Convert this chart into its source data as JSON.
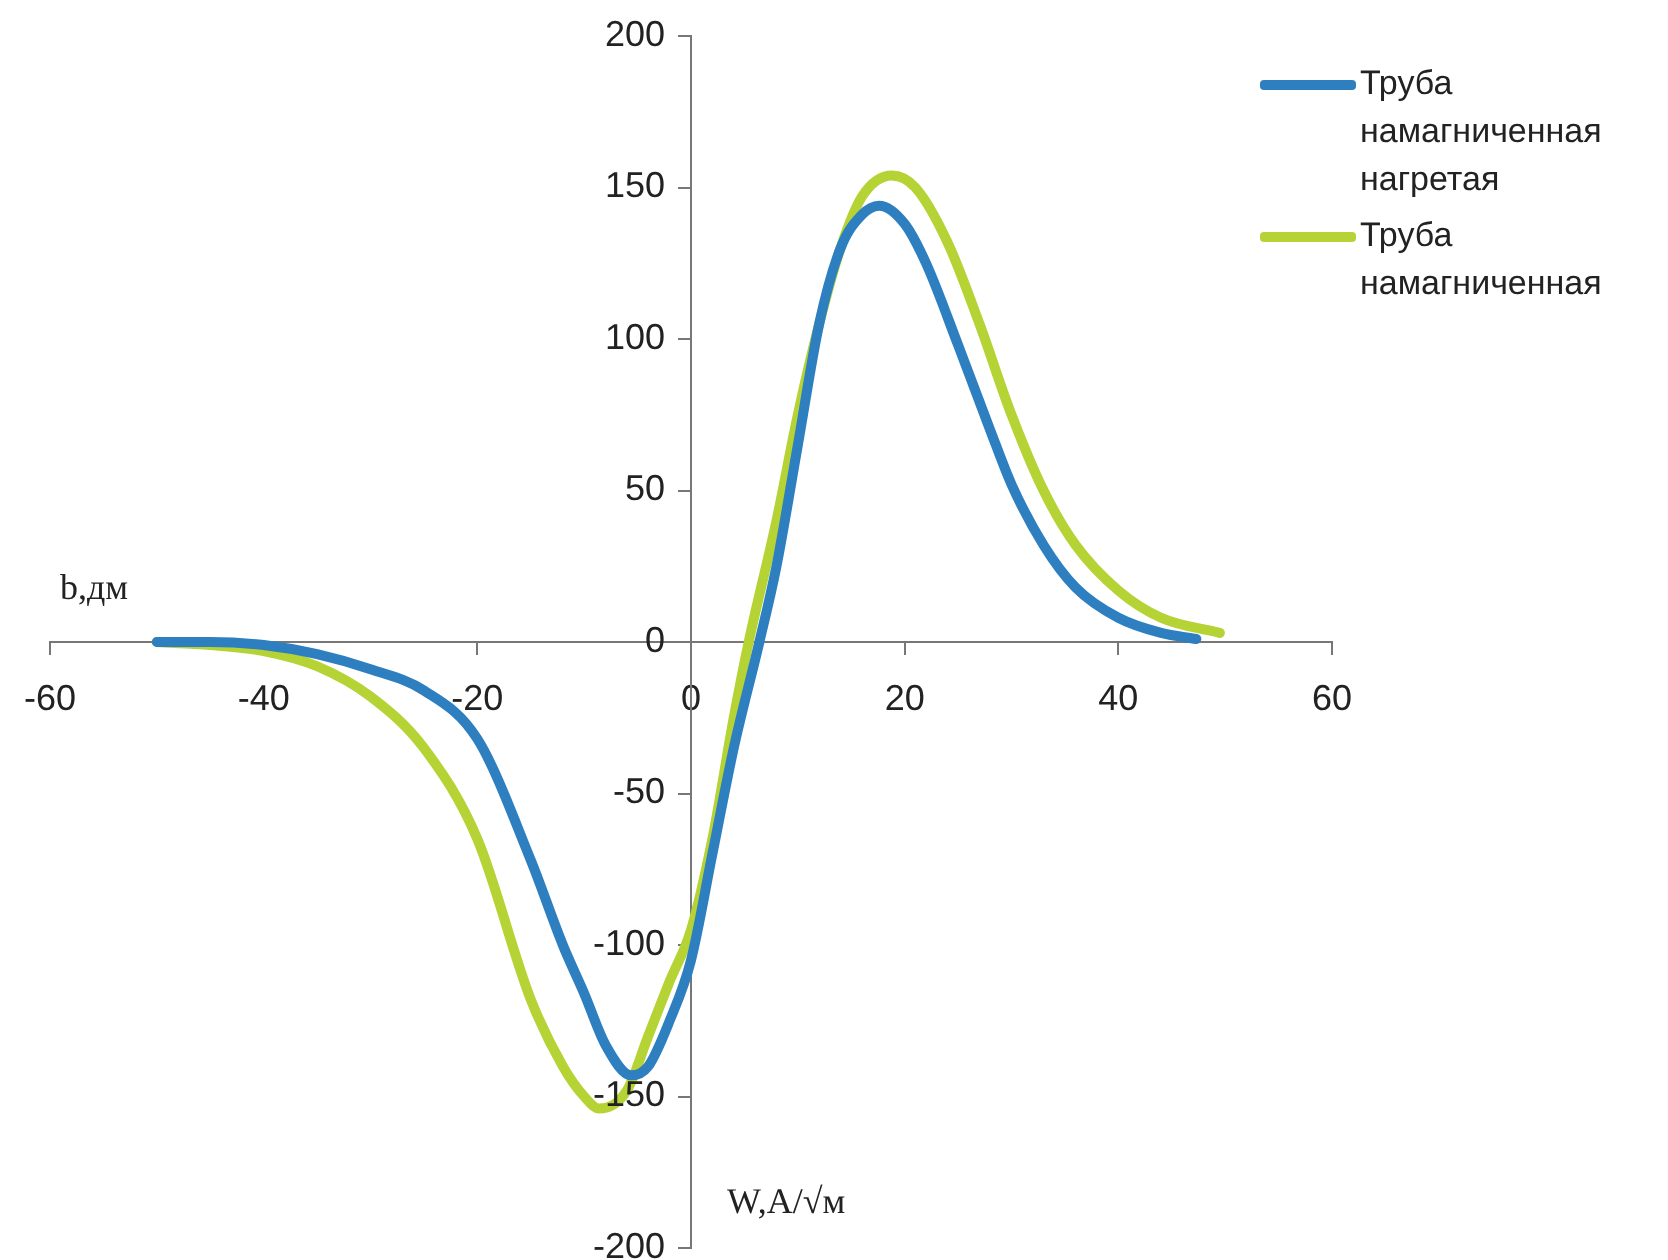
{
  "chart_data": {
    "type": "line",
    "xlabel": "W,A/√м",
    "ylabel": "b,дм",
    "xlim": [
      -60,
      60
    ],
    "xticks": [
      -60,
      -40,
      -20,
      0,
      20,
      40,
      60
    ],
    "ylim": [
      -200,
      200
    ],
    "yticks": [
      -200,
      -150,
      -100,
      -50,
      0,
      50,
      100,
      150,
      200
    ],
    "grid": false,
    "legend": "top right",
    "marker": "none",
    "line_style": "solid",
    "series": [
      {
        "name": "Труба намагниченная нагретая",
        "color": "#2e7fc0",
        "x": [
          -50,
          -45,
          -40,
          -35,
          -30,
          -25,
          -20,
          -15,
          -12,
          -10,
          -8,
          -5.6,
          -4,
          -2,
          0,
          2,
          4,
          6.4,
          8,
          10,
          12,
          14,
          16,
          17.6,
          20,
          22,
          25,
          28,
          30,
          33,
          36,
          40,
          44,
          47.3
        ],
        "values": [
          0,
          0,
          -1,
          -4,
          -9,
          -16,
          -32,
          -72,
          -100,
          -116,
          -133,
          -143,
          -140,
          -125,
          -105,
          -70,
          -35,
          0,
          25,
          65,
          105,
          130,
          141,
          144,
          138,
          125,
          98,
          70,
          52,
          32,
          18,
          8,
          3,
          1
        ]
      },
      {
        "name": "Труба намагниченная",
        "color": "#b5d334",
        "x": [
          -50,
          -45,
          -40,
          -35,
          -30,
          -25,
          -20,
          -15,
          -12,
          -10,
          -8.6,
          -6,
          -4,
          -2,
          0,
          2,
          4,
          5.4,
          8,
          10,
          12,
          14,
          16,
          18.8,
          21,
          24,
          27,
          30,
          33,
          36,
          40,
          44,
          49.5
        ],
        "values": [
          0,
          -1,
          -3,
          -8,
          -18,
          -35,
          -65,
          -118,
          -140,
          -150,
          -154,
          -148,
          -130,
          -112,
          -95,
          -65,
          -25,
          0,
          40,
          75,
          105,
          130,
          147,
          154,
          150,
          132,
          105,
          75,
          50,
          32,
          17,
          8,
          3
        ]
      }
    ]
  }
}
